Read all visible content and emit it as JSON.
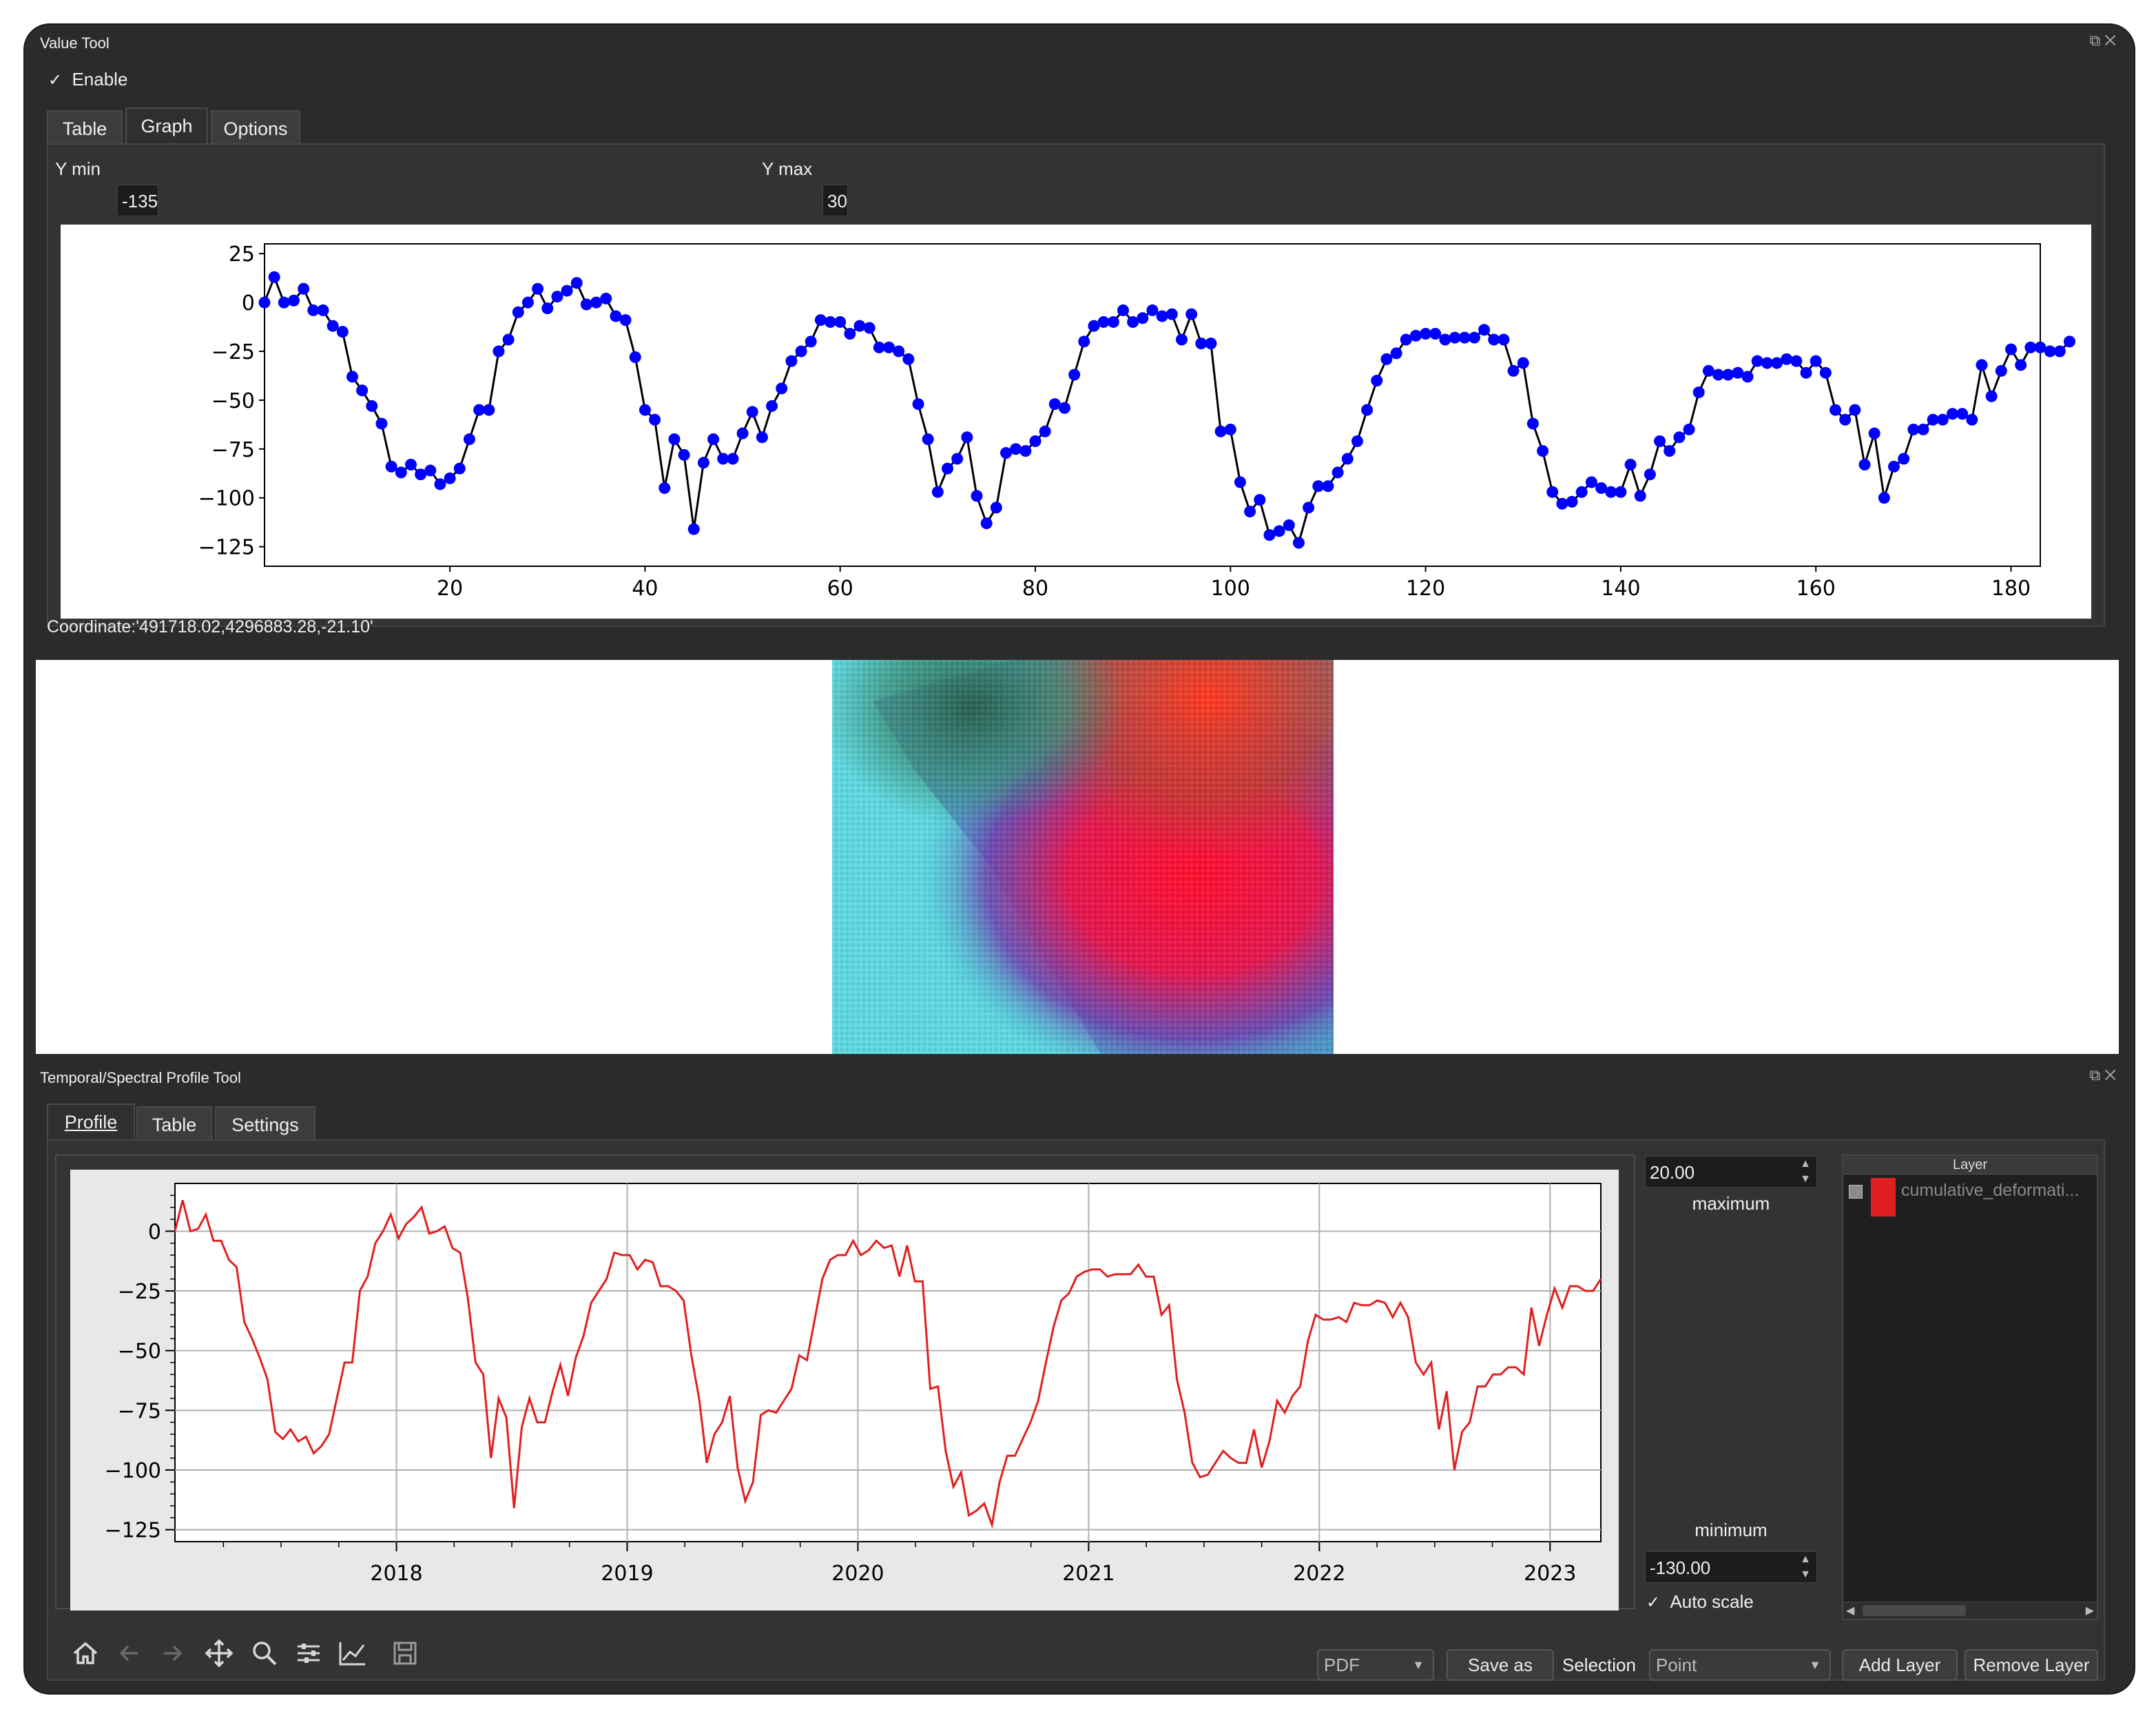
{
  "value_tool": {
    "title": "Value Tool",
    "enable_label": "Enable",
    "enable_checked": true,
    "tabs": [
      {
        "label": "Table"
      },
      {
        "label": "Graph"
      },
      {
        "label": "Options"
      }
    ],
    "active_tab": "Graph",
    "ymin_label": "Y min",
    "ymin_value": "-135",
    "ymax_label": "Y max",
    "ymax_value": "30",
    "coordinate": "Coordinate:'491718.02,4296883.28,-21.10'"
  },
  "profile_tool": {
    "title": "Temporal/Spectral Profile Tool",
    "tabs": [
      {
        "label": "Profile"
      },
      {
        "label": "Table"
      },
      {
        "label": "Settings"
      }
    ],
    "active_tab": "Profile",
    "maximum_value": "20.00",
    "maximum_label": "maximum",
    "minimum_label": "minimum",
    "minimum_value": "-130.00",
    "auto_scale_label": "Auto scale",
    "auto_scale_checked": true,
    "layer_header": "Layer",
    "layers": [
      {
        "name": "cumulative_deformati...",
        "color": "#e02020"
      }
    ],
    "format_value": "PDF",
    "save_as_label": "Save as",
    "selection_label": "Selection",
    "selection_value": "Point",
    "add_layer_label": "Add Layer",
    "remove_layer_label": "Remove Layer",
    "toolbar_icons": [
      "home-icon",
      "back-arrow-icon",
      "forward-arrow-icon",
      "pan-icon",
      "zoom-icon",
      "configure-subplots-icon",
      "edit-axis-icon",
      "save-icon"
    ]
  },
  "colors": {
    "line_chart_series": "#0000ff",
    "line_chart_line": "#000000",
    "profile_series": "#e02020"
  },
  "chart_data": [
    {
      "type": "scatter",
      "title": "",
      "xlabel": "",
      "ylabel": "",
      "xlim": [
        1,
        183
      ],
      "ylim": [
        -135,
        30
      ],
      "xticks": [
        20,
        40,
        60,
        80,
        100,
        120,
        140,
        160,
        180
      ],
      "yticks": [
        25,
        0,
        -25,
        -50,
        -75,
        -100,
        -125
      ],
      "grid": false,
      "series": [
        {
          "x": "index 1..183",
          "markers": "blue circles joined by black line",
          "values": [
            0,
            13,
            0,
            1,
            7,
            -4,
            -4,
            -12,
            -15,
            -38,
            -45,
            -53,
            -62,
            -84,
            -87,
            -83,
            -88,
            -86,
            -93,
            -90,
            -85,
            -70,
            -55,
            -55,
            -25,
            -19,
            -5,
            0,
            7,
            -3,
            3,
            6,
            10,
            -1,
            0,
            2,
            -7,
            -9,
            -28,
            -55,
            -60,
            -95,
            -70,
            -78,
            -116,
            -82,
            -70,
            -80,
            -80,
            -67,
            -56,
            -69,
            -53,
            -44,
            -30,
            -25,
            -20,
            -9,
            -10,
            -10,
            -16,
            -12,
            -13,
            -23,
            -23,
            -25,
            -29,
            -52,
            -70,
            -97,
            -85,
            -80,
            -69,
            -99,
            -113,
            -105,
            -77,
            -75,
            -76,
            -71,
            -66,
            -52,
            -54,
            -37,
            -20,
            -12,
            -10,
            -10,
            -4,
            -10,
            -8,
            -4,
            -7,
            -6,
            -19,
            -6,
            -21,
            -21,
            -66,
            -65,
            -92,
            -107,
            -101,
            -119,
            -117,
            -114,
            -123,
            -105,
            -94,
            -94,
            -87,
            -80,
            -71,
            -55,
            -40,
            -29,
            -26,
            -19,
            -17,
            -16,
            -16,
            -19,
            -18,
            -18,
            -18,
            -14,
            -19,
            -19,
            -35,
            -31,
            -62,
            -76,
            -97,
            -103,
            -102,
            -97,
            -92,
            -95,
            -97,
            -97,
            -83,
            -99,
            -88,
            -71,
            -76,
            -69,
            -65,
            -46,
            -35,
            -37,
            -37,
            -36,
            -38,
            -30,
            -31,
            -31,
            -29,
            -30,
            -36,
            -30,
            -36,
            -55,
            -60,
            -55,
            -83,
            -67,
            -100,
            -84,
            -80,
            -65,
            -65,
            -60,
            -60,
            -57,
            -57,
            -60,
            -32,
            -48,
            -35,
            -24,
            -32,
            -23,
            -23,
            -25,
            -25,
            -20
          ]
        }
      ]
    },
    {
      "type": "line",
      "title": "",
      "xlabel": "",
      "ylabel": "",
      "x_tick_labels": [
        "2018",
        "2019",
        "2020",
        "2021",
        "2022",
        "2023"
      ],
      "xlim_years": [
        2017.04,
        2023.22
      ],
      "ylim": [
        -130,
        20
      ],
      "yticks": [
        0,
        -25,
        -50,
        -75,
        -100,
        -125
      ],
      "grid": true,
      "series": [
        {
          "color": "#e02020",
          "values": [
            0,
            13,
            0,
            1,
            7,
            -4,
            -4,
            -12,
            -15,
            -38,
            -45,
            -53,
            -62,
            -84,
            -87,
            -83,
            -88,
            -86,
            -93,
            -90,
            -85,
            -70,
            -55,
            -55,
            -25,
            -19,
            -5,
            0,
            7,
            -3,
            3,
            6,
            10,
            -1,
            0,
            2,
            -7,
            -9,
            -28,
            -55,
            -60,
            -95,
            -70,
            -78,
            -116,
            -82,
            -70,
            -80,
            -80,
            -67,
            -56,
            -69,
            -53,
            -44,
            -30,
            -25,
            -20,
            -9,
            -10,
            -10,
            -16,
            -12,
            -13,
            -23,
            -23,
            -25,
            -29,
            -52,
            -70,
            -97,
            -85,
            -80,
            -69,
            -99,
            -113,
            -105,
            -77,
            -75,
            -76,
            -71,
            -66,
            -52,
            -54,
            -37,
            -20,
            -12,
            -10,
            -10,
            -4,
            -10,
            -8,
            -4,
            -7,
            -6,
            -19,
            -6,
            -21,
            -21,
            -66,
            -65,
            -92,
            -107,
            -101,
            -119,
            -117,
            -114,
            -123,
            -105,
            -94,
            -94,
            -87,
            -80,
            -71,
            -55,
            -40,
            -29,
            -26,
            -19,
            -17,
            -16,
            -16,
            -19,
            -18,
            -18,
            -18,
            -14,
            -19,
            -19,
            -35,
            -31,
            -62,
            -76,
            -97,
            -103,
            -102,
            -97,
            -92,
            -95,
            -97,
            -97,
            -83,
            -99,
            -88,
            -71,
            -76,
            -69,
            -65,
            -46,
            -35,
            -37,
            -37,
            -36,
            -38,
            -30,
            -31,
            -31,
            -29,
            -30,
            -36,
            -30,
            -36,
            -55,
            -60,
            -55,
            -83,
            -67,
            -100,
            -84,
            -80,
            -65,
            -65,
            -60,
            -60,
            -57,
            -57,
            -60,
            -32,
            -48,
            -35,
            -24,
            -32,
            -23,
            -23,
            -25,
            -25,
            -20
          ]
        }
      ]
    }
  ]
}
